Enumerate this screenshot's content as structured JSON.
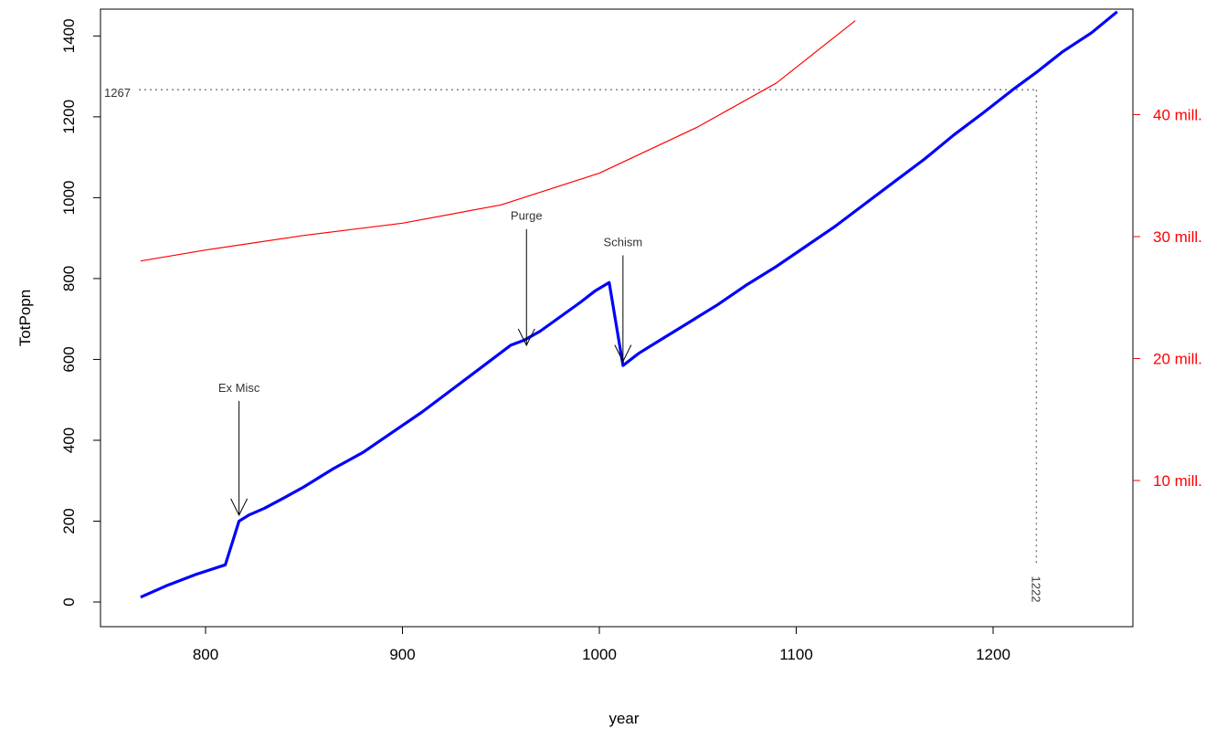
{
  "chart_data": {
    "type": "line",
    "xlabel": "year",
    "ylabel": "TotPopn",
    "xlim": [
      767,
      1263
    ],
    "ylim": [
      -60,
      1408
    ],
    "x_ticks": [
      800,
      900,
      1000,
      1100,
      1200
    ],
    "y_ticks": [
      0,
      200,
      400,
      600,
      800,
      1000,
      1200,
      1400
    ],
    "right_axis": {
      "color": "#ff0000",
      "ticks": [
        {
          "value": 10,
          "label": "10 mill."
        },
        {
          "value": 20,
          "label": "20 mill."
        },
        {
          "value": 30,
          "label": "30 mill."
        },
        {
          "value": 40,
          "label": "40 mill."
        }
      ]
    },
    "grid": false,
    "series": [
      {
        "color": "#0000ff",
        "axis": "left",
        "x": [
          767,
          780,
          795,
          810,
          817,
          822,
          830,
          840,
          850,
          865,
          880,
          895,
          910,
          925,
          940,
          955,
          962,
          970,
          980,
          990,
          998,
          1005,
          1012,
          1020,
          1030,
          1045,
          1060,
          1075,
          1090,
          1105,
          1120,
          1135,
          1150,
          1165,
          1180,
          1195,
          1210,
          1222,
          1235,
          1250,
          1263
        ],
        "y": [
          12,
          40,
          68,
          92,
          200,
          215,
          232,
          258,
          285,
          330,
          370,
          420,
          470,
          525,
          580,
          635,
          648,
          670,
          705,
          740,
          770,
          790,
          585,
          615,
          645,
          690,
          735,
          785,
          830,
          880,
          930,
          985,
          1040,
          1095,
          1155,
          1210,
          1267,
          1310,
          1360,
          1408,
          1460
        ]
      },
      {
        "color": "#ff0000",
        "axis": "right",
        "x": [
          767,
          800,
          850,
          900,
          950,
          1000,
          1050,
          1090,
          1130
        ],
        "y": [
          28.0,
          28.9,
          30.1,
          31.1,
          32.6,
          35.2,
          39.0,
          42.6,
          47.7
        ]
      }
    ],
    "annotations": [
      {
        "text": "Ex Misc",
        "x": 817,
        "y_text": 520,
        "y_tip": 215
      },
      {
        "text": "Purge",
        "x": 963,
        "y_text": 945,
        "y_tip": 635
      },
      {
        "text": "Schism",
        "x": 1012,
        "y_text": 880,
        "y_tip": 595
      }
    ],
    "reference": {
      "x": 1222,
      "y": 1267,
      "x_label": "1222",
      "y_label": "1267"
    }
  }
}
